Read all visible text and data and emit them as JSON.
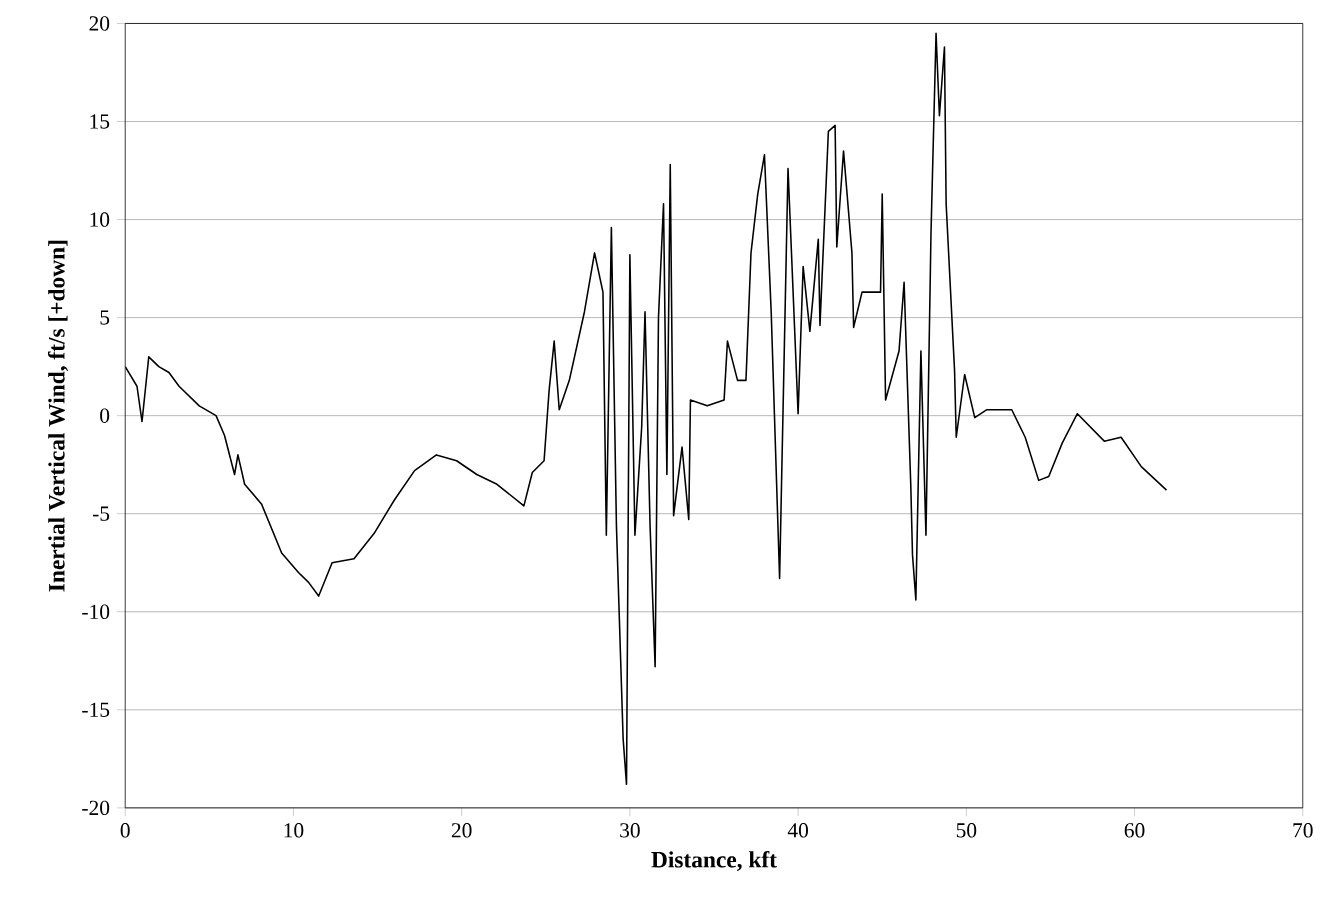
{
  "chart_data": {
    "type": "line",
    "xlabel": "Distance, kft",
    "ylabel": "Inertial Vertical Wind, ft/s [+down]",
    "x": [
      0,
      0.7,
      1.0,
      1.4,
      2.0,
      2.6,
      3.2,
      4.4,
      5.4,
      5.9,
      6.5,
      6.7,
      7.1,
      8.1,
      9.3,
      10.3,
      10.9,
      11.5,
      12.3,
      13.6,
      14.8,
      16,
      17.2,
      18.5,
      19.7,
      20.9,
      22.1,
      23.7,
      24.2,
      24.9,
      25.2,
      25.5,
      25.8,
      26.4,
      27.3,
      27.9,
      28.4,
      28.6,
      28.9,
      29.2,
      29.6,
      29.8,
      30.0,
      30.3,
      30.7,
      30.9,
      31.2,
      31.5,
      31.7,
      32.0,
      32.2,
      32.4,
      32.6,
      33.1,
      33.5,
      33.6,
      34.6,
      35.6,
      35.8,
      36.4,
      36.9,
      37.2,
      37.6,
      38.0,
      38.4,
      38.9,
      39.4,
      40.0,
      40.3,
      40.7,
      41.2,
      41.3,
      41.8,
      42.2,
      42.3,
      42.7,
      43.2,
      43.3,
      43.8,
      44.9,
      45.0,
      45.2,
      46.0,
      46.3,
      46.7,
      46.8,
      47.0,
      47.3,
      47.6,
      47.9,
      48.2,
      48.4,
      48.7,
      48.8,
      49.3,
      49.4,
      49.9,
      50.5,
      51.2,
      52.7,
      53.5,
      54.3,
      54.9,
      55.7,
      56.6,
      58.2,
      59.2,
      60.4,
      61.9
    ],
    "values": [
      2.5,
      1.5,
      -0.3,
      3.0,
      2.5,
      2.2,
      1.5,
      0.5,
      0,
      -1,
      -3,
      -2,
      -3.5,
      -4.5,
      -7,
      -8,
      -8.5,
      -9.2,
      -7.5,
      -7.3,
      -6,
      -4.3,
      -2.8,
      -2,
      -2.3,
      -3,
      -3.5,
      -4.6,
      -2.9,
      -2.3,
      1.3,
      3.8,
      0.3,
      1.8,
      5.3,
      8.3,
      6.3,
      -6.1,
      9.6,
      -5.6,
      -16.5,
      -18.8,
      8.2,
      -6.1,
      -0.6,
      5.3,
      -5.6,
      -12.8,
      5,
      10.8,
      -3,
      12.8,
      -5.1,
      -1.6,
      -5.3,
      0.8,
      0.5,
      0.8,
      3.8,
      1.8,
      1.8,
      8.3,
      11.3,
      13.3,
      5.3,
      -8.3,
      12.6,
      0.1,
      7.6,
      4.3,
      9.0,
      4.6,
      14.5,
      14.8,
      8.6,
      13.5,
      8.3,
      4.5,
      6.3,
      6.3,
      11.3,
      0.8,
      3.3,
      6.8,
      -3.6,
      -7.1,
      -9.4,
      3.3,
      -6.1,
      9.3,
      19.5,
      15.3,
      18.8,
      10.8,
      2.3,
      -1.1,
      2.1,
      -0.1,
      0.3,
      0.3,
      -1.1,
      -3.3,
      -3.1,
      -1.4,
      0.1,
      -1.3,
      -1.1,
      -2.6,
      -3.8
    ],
    "color": "#000000",
    "xlim": [
      0,
      70
    ],
    "ylim": [
      -20,
      20
    ],
    "xticks": [
      0,
      10,
      20,
      30,
      40,
      50,
      60,
      70
    ],
    "yticks": [
      -20,
      -15,
      -10,
      -5,
      0,
      5,
      10,
      15,
      20
    ],
    "grid": "y",
    "marker": "none",
    "line_style": "solid"
  }
}
